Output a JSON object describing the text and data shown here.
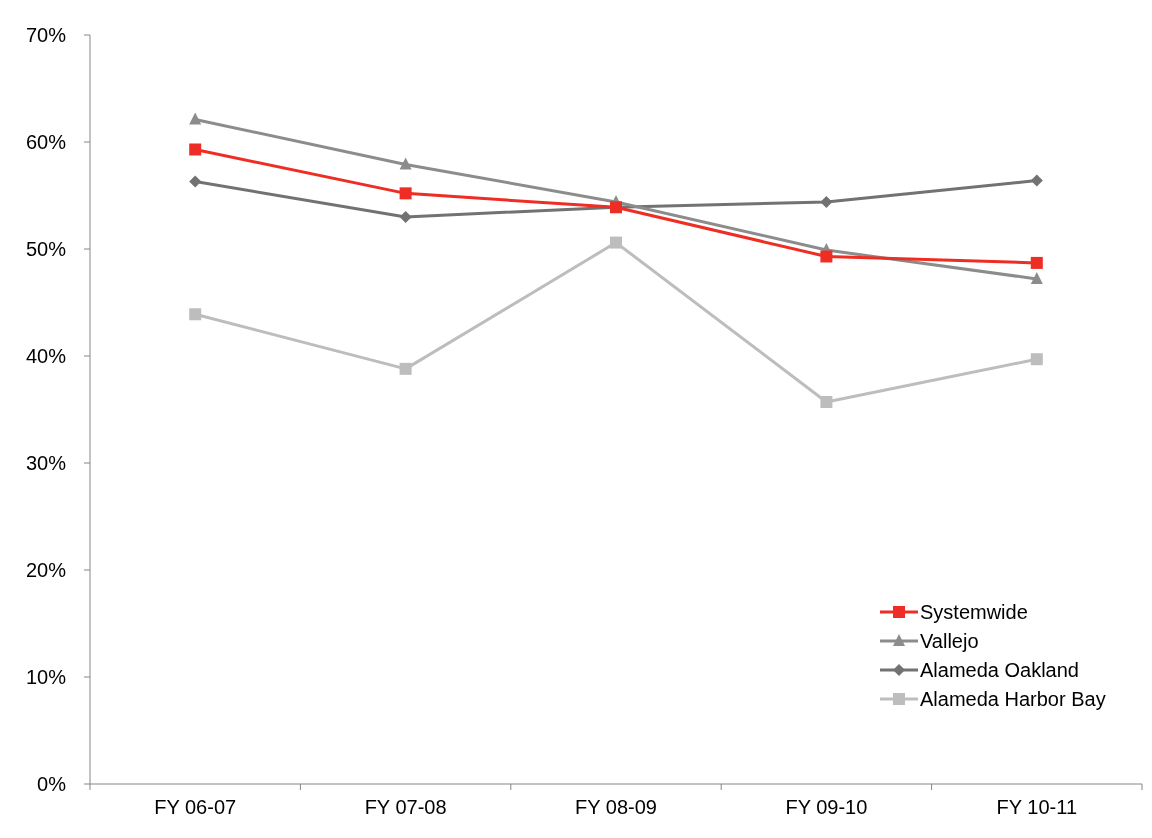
{
  "chart_data": {
    "type": "line",
    "categories": [
      "FY 06-07",
      "FY 07-08",
      "FY 08-09",
      "FY 09-10",
      "FY 10-11"
    ],
    "ylim": [
      0,
      70
    ],
    "yticks": [
      {
        "value": 0,
        "label": "0%"
      },
      {
        "value": 10,
        "label": "10%"
      },
      {
        "value": 20,
        "label": "20%"
      },
      {
        "value": 30,
        "label": "30%"
      },
      {
        "value": 40,
        "label": "40%"
      },
      {
        "value": 50,
        "label": "50%"
      },
      {
        "value": 60,
        "label": "60%"
      },
      {
        "value": 70,
        "label": "70%"
      }
    ],
    "grid": false,
    "legend": "bottom right",
    "series": [
      {
        "name": "Systemwide",
        "color": "#ee2d24",
        "marker": "square",
        "values": [
          59.3,
          55.2,
          53.9,
          49.3,
          48.7
        ]
      },
      {
        "name": "Vallejo",
        "color": "#8c8c8c",
        "marker": "triangle",
        "values": [
          62.1,
          57.9,
          54.4,
          49.9,
          47.2
        ]
      },
      {
        "name": "Alameda Oakland",
        "color": "#727272",
        "marker": "diamond",
        "values": [
          56.3,
          53.0,
          53.9,
          54.4,
          56.4
        ]
      },
      {
        "name": "Alameda Harbor Bay",
        "color": "#bdbdbd",
        "marker": "square",
        "values": [
          43.9,
          38.8,
          50.6,
          35.7,
          39.7
        ]
      }
    ]
  }
}
